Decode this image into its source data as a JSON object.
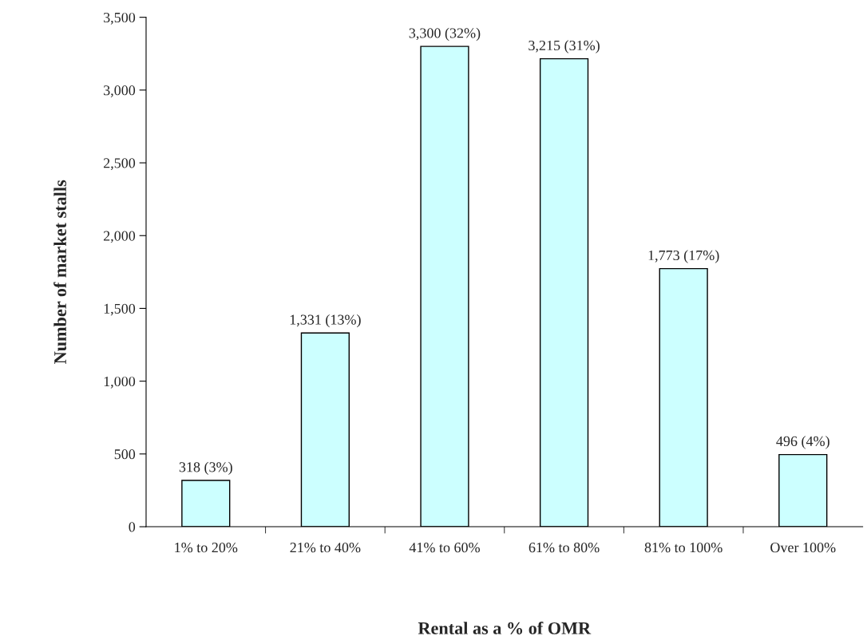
{
  "chart_data": {
    "type": "bar",
    "xlabel": "Rental as a % of OMR",
    "ylabel": "Number of market stalls",
    "categories": [
      "1% to 20%",
      "21% to 40%",
      "41% to 60%",
      "61% to 80%",
      "81% to 100%",
      "Over 100%"
    ],
    "values": [
      318,
      1331,
      3300,
      3215,
      1773,
      496
    ],
    "value_labels": [
      "318 (3%)",
      "1,331 (13%)",
      "3,300 (32%)",
      "3,215 (31%)",
      "1,773 (17%)",
      "496 (4%)"
    ],
    "color": "#ccffff",
    "ylim": [
      0,
      3500
    ],
    "yticks": [
      {
        "value": 0,
        "label": "0"
      },
      {
        "value": 500,
        "label": "500"
      },
      {
        "value": 1000,
        "label": "1,000"
      },
      {
        "value": 1500,
        "label": "1,500"
      },
      {
        "value": 2000,
        "label": "2,000"
      },
      {
        "value": 2500,
        "label": "2,500"
      },
      {
        "value": 3000,
        "label": "3,000"
      },
      {
        "value": 3500,
        "label": "3,500"
      }
    ],
    "grid": false,
    "legend": false
  }
}
